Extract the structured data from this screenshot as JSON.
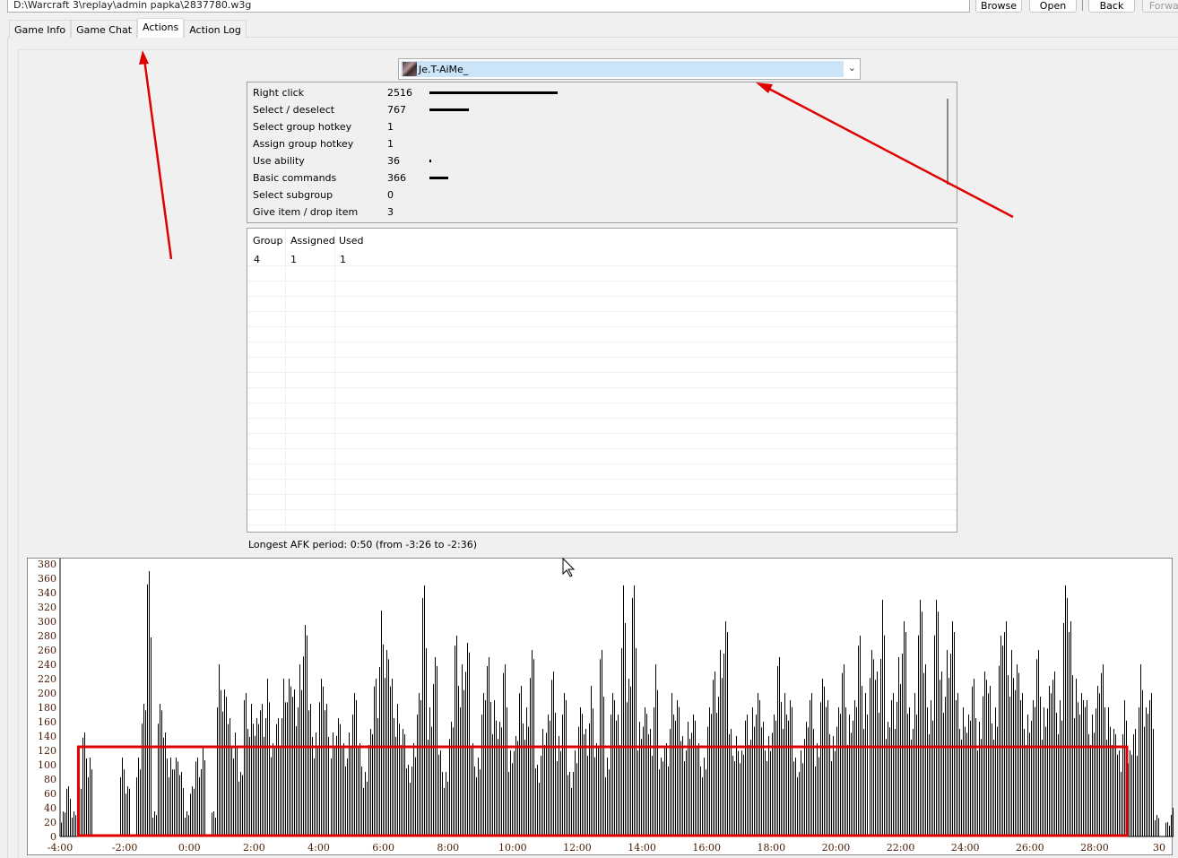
{
  "toolbar": {
    "path": "D:\\Warcraft 3\\replay\\admin papka\\2837780.w3g",
    "browse": "Browse",
    "open": "Open",
    "back": "Back",
    "forward": "Forward"
  },
  "tabs": [
    {
      "label": "Game Info",
      "active": false
    },
    {
      "label": "Game Chat",
      "active": false
    },
    {
      "label": "Actions",
      "active": true
    },
    {
      "label": "Action Log",
      "active": false
    }
  ],
  "player_select": {
    "value": "Je.T-AiMe_"
  },
  "actions": [
    {
      "label": "Right click",
      "value": 2516
    },
    {
      "label": "Select / deselect",
      "value": 767
    },
    {
      "label": "Select group hotkey",
      "value": 1
    },
    {
      "label": "Assign group hotkey",
      "value": 1
    },
    {
      "label": "Use ability",
      "value": 36
    },
    {
      "label": "Basic commands",
      "value": 366
    },
    {
      "label": "Select subgroup",
      "value": 0
    },
    {
      "label": "Give item / drop item",
      "value": 3
    }
  ],
  "groups": {
    "headers": [
      "Group",
      "Assigned",
      "Used"
    ],
    "rows": [
      [
        "4",
        "1",
        "1"
      ]
    ]
  },
  "afk_text": "Longest AFK period: 0:50 (from -3:26 to -2:36)",
  "annotation_color": "#e00000",
  "chart_data": {
    "type": "bar",
    "x_start": "-4:00",
    "x_step_seconds": 10,
    "ylim": [
      0,
      380
    ],
    "yticks": [
      0,
      20,
      40,
      60,
      80,
      100,
      120,
      140,
      160,
      180,
      200,
      220,
      240,
      260,
      280,
      300,
      320,
      340,
      360,
      380
    ],
    "xticks": [
      "-4:00",
      "-2:00",
      "0:00",
      "2:00",
      "4:00",
      "6:00",
      "8:00",
      "10:00",
      "12:00",
      "14:00",
      "16:00",
      "18:00",
      "20:00",
      "22:00",
      "24:00",
      "26:00",
      "28:00",
      "30"
    ],
    "highlight_box": {
      "from": "-3:26",
      "to": "29:00",
      "y_max": 125
    },
    "values": [
      35,
      70,
      35,
      70,
      145,
      110,
      0,
      0,
      0,
      0,
      0,
      110,
      70,
      0,
      110,
      185,
      370,
      35,
      185,
      145,
      110,
      110,
      90,
      35,
      70,
      110,
      125,
      0,
      35,
      240,
      205,
      165,
      145,
      90,
      200,
      185,
      165,
      185,
      220,
      130,
      165,
      220,
      220,
      205,
      240,
      295,
      185,
      145,
      220,
      185,
      145,
      165,
      130,
      145,
      200,
      130,
      90,
      150,
      220,
      315,
      260,
      220,
      185,
      150,
      100,
      130,
      200,
      350,
      180,
      250,
      120,
      90,
      160,
      280,
      240,
      270,
      130,
      110,
      200,
      250,
      190,
      160,
      240,
      120,
      140,
      210,
      180,
      260,
      100,
      150,
      170,
      230,
      140,
      200,
      90,
      120,
      180,
      150,
      210,
      130,
      260,
      110,
      200,
      170,
      350,
      220,
      350,
      160,
      180,
      150,
      240,
      110,
      130,
      200,
      190,
      140,
      160,
      170,
      130,
      110,
      180,
      230,
      260,
      300,
      150,
      140,
      120,
      170,
      180,
      200,
      160,
      140,
      170,
      250,
      200,
      190,
      110,
      120,
      160,
      200,
      130,
      220,
      190,
      140,
      180,
      240,
      170,
      190,
      280,
      200,
      260,
      230,
      330,
      160,
      200,
      250,
      300,
      180,
      200,
      330,
      240,
      190,
      330,
      230,
      260,
      300,
      200,
      180,
      170,
      220,
      160,
      230,
      210,
      180,
      280,
      300,
      260,
      240,
      200,
      170,
      190,
      260,
      180,
      210,
      230,
      190,
      350,
      300,
      220,
      200,
      190,
      170,
      210,
      240,
      180,
      150,
      120,
      190,
      120,
      150,
      240,
      180,
      200,
      30,
      0,
      20,
      40,
      0,
      40,
      35
    ]
  }
}
